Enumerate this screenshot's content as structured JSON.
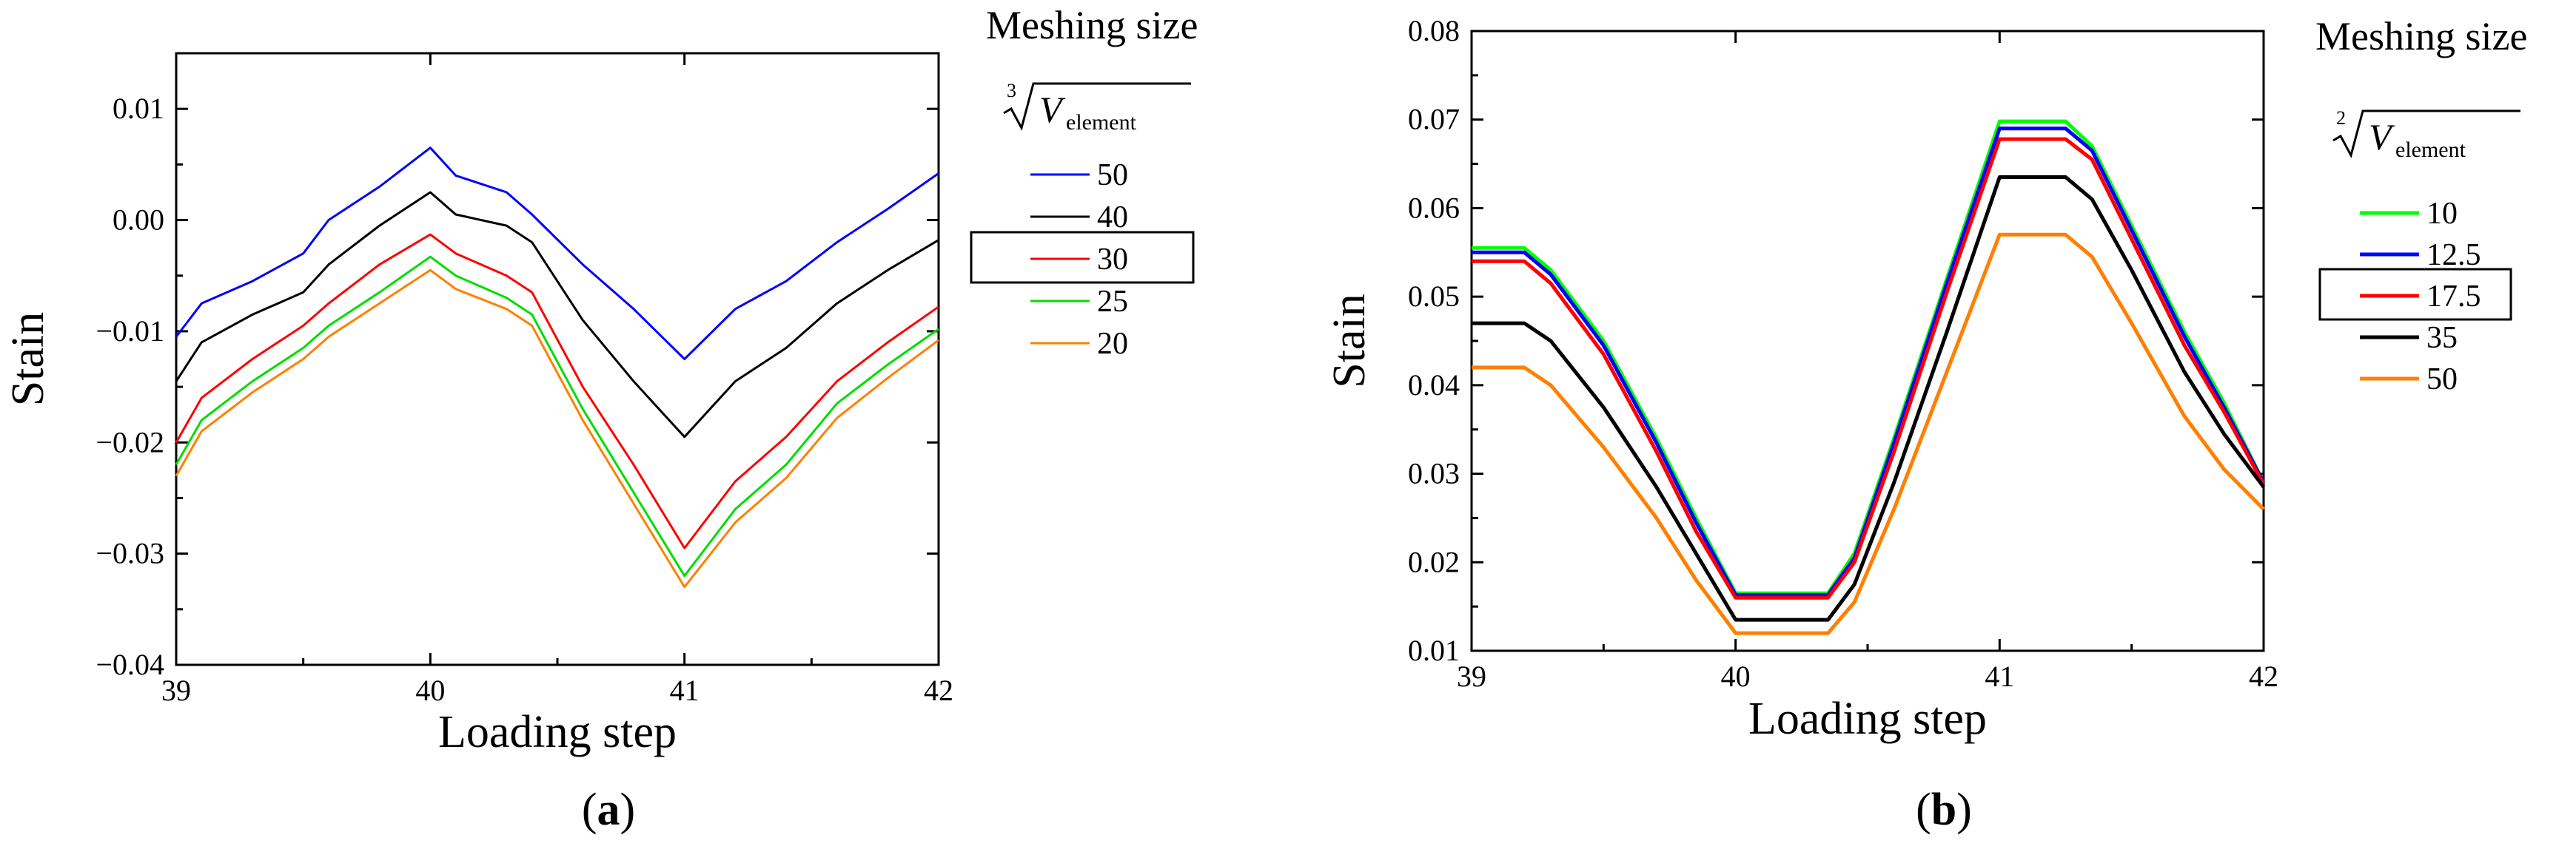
{
  "chart_data": [
    {
      "type": "line",
      "panel_label": "a",
      "xlabel": "Loading step",
      "ylabel": "Stain",
      "xlim": [
        39,
        42
      ],
      "ylim": [
        -0.04,
        0.015
      ],
      "xticks": [
        "39",
        "40",
        "41",
        "42"
      ],
      "xtick_values": [
        39,
        40,
        41,
        42
      ],
      "yticks": [
        "-0.04",
        "-0.03",
        "-0.02",
        "-0.01",
        "0.00",
        "0.01"
      ],
      "ytick_values": [
        -0.04,
        -0.03,
        -0.02,
        -0.01,
        0.0,
        0.01
      ],
      "grid": false,
      "legend_placement": "right, outside plot",
      "legend": {
        "title": "Meshing size",
        "root_index": "3",
        "root_variable": "V",
        "root_subscript": "element",
        "highlighted_entry": "30"
      },
      "x": [
        39,
        39.1,
        39.3,
        39.5,
        39.6,
        39.8,
        40,
        40.1,
        40.3,
        40.4,
        40.6,
        40.8,
        41,
        41.2,
        41.4,
        41.6,
        41.8,
        42
      ],
      "series": [
        {
          "name": "50",
          "color": "#0000ff",
          "values": [
            -0.0105,
            -0.0075,
            -0.0055,
            -0.003,
            0.0,
            0.003,
            0.0065,
            0.004,
            0.0025,
            0.0005,
            -0.004,
            -0.008,
            -0.0125,
            -0.008,
            -0.0055,
            -0.002,
            0.001,
            0.0042
          ]
        },
        {
          "name": "40",
          "color": "#000000",
          "values": [
            -0.0145,
            -0.011,
            -0.0085,
            -0.0065,
            -0.004,
            -0.0005,
            0.0025,
            0.0005,
            -0.0005,
            -0.002,
            -0.009,
            -0.0145,
            -0.0195,
            -0.0145,
            -0.0115,
            -0.0075,
            -0.0045,
            -0.0018
          ]
        },
        {
          "name": "30",
          "color": "#ff0000",
          "values": [
            -0.02,
            -0.016,
            -0.0125,
            -0.0095,
            -0.0075,
            -0.004,
            -0.0013,
            -0.003,
            -0.005,
            -0.0065,
            -0.015,
            -0.022,
            -0.0295,
            -0.0235,
            -0.0195,
            -0.0145,
            -0.011,
            -0.0078
          ]
        },
        {
          "name": "25",
          "color": "#00dd00",
          "values": [
            -0.022,
            -0.018,
            -0.0145,
            -0.0115,
            -0.0095,
            -0.0065,
            -0.0033,
            -0.005,
            -0.007,
            -0.0085,
            -0.017,
            -0.0245,
            -0.032,
            -0.026,
            -0.022,
            -0.0165,
            -0.013,
            -0.0098
          ]
        },
        {
          "name": "20",
          "color": "#ff8000",
          "values": [
            -0.023,
            -0.019,
            -0.0155,
            -0.0125,
            -0.0105,
            -0.0075,
            -0.0045,
            -0.0062,
            -0.008,
            -0.0095,
            -0.018,
            -0.0255,
            -0.033,
            -0.0272,
            -0.0232,
            -0.0178,
            -0.0142,
            -0.0108
          ]
        }
      ]
    },
    {
      "type": "line",
      "panel_label": "b",
      "xlabel": "Loading step",
      "ylabel": "Stain",
      "xlim": [
        39,
        42
      ],
      "ylim": [
        0.01,
        0.08
      ],
      "xticks": [
        "39",
        "40",
        "41",
        "42"
      ],
      "xtick_values": [
        39,
        40,
        41,
        42
      ],
      "yticks": [
        "0.01",
        "0.02",
        "0.03",
        "0.04",
        "0.05",
        "0.06",
        "0.07",
        "0.08"
      ],
      "ytick_values": [
        0.01,
        0.02,
        0.03,
        0.04,
        0.05,
        0.06,
        0.07,
        0.08
      ],
      "grid": false,
      "legend_placement": "right, outside plot",
      "legend": {
        "title": "Meshing size",
        "root_index": "2",
        "root_variable": "V",
        "root_subscript": "element",
        "highlighted_entry": "17.5"
      },
      "x": [
        39,
        39.1,
        39.2,
        39.3,
        39.5,
        39.7,
        39.85,
        40,
        40.2,
        40.35,
        40.45,
        40.6,
        40.8,
        41,
        41.15,
        41.25,
        41.35,
        41.5,
        41.7,
        41.85,
        42
      ],
      "series": [
        {
          "name": "10",
          "color": "#00ff00",
          "values": [
            0.0555,
            0.0555,
            0.0555,
            0.053,
            0.045,
            0.034,
            0.025,
            0.0165,
            0.0165,
            0.0165,
            0.021,
            0.034,
            0.052,
            0.0698,
            0.0698,
            0.0698,
            0.067,
            0.058,
            0.046,
            0.038,
            0.029
          ]
        },
        {
          "name": "12.5",
          "color": "#0000ff",
          "values": [
            0.055,
            0.055,
            0.055,
            0.0525,
            0.0445,
            0.0335,
            0.0245,
            0.0163,
            0.0163,
            0.0163,
            0.0205,
            0.0335,
            0.0515,
            0.069,
            0.069,
            0.069,
            0.0665,
            0.0575,
            0.0455,
            0.0375,
            0.029
          ]
        },
        {
          "name": "17.5",
          "color": "#ff0000",
          "values": [
            0.054,
            0.054,
            0.054,
            0.0515,
            0.0435,
            0.0325,
            0.0235,
            0.016,
            0.016,
            0.016,
            0.02,
            0.0325,
            0.0505,
            0.0678,
            0.0678,
            0.0678,
            0.0655,
            0.0565,
            0.0445,
            0.037,
            0.0288
          ]
        },
        {
          "name": "35",
          "color": "#000000",
          "values": [
            0.047,
            0.047,
            0.047,
            0.045,
            0.0375,
            0.0285,
            0.021,
            0.0135,
            0.0135,
            0.0135,
            0.0175,
            0.029,
            0.046,
            0.0635,
            0.0635,
            0.0635,
            0.061,
            0.053,
            0.0415,
            0.0345,
            0.0285
          ]
        },
        {
          "name": "50",
          "color": "#ff8000",
          "values": [
            0.042,
            0.042,
            0.042,
            0.04,
            0.033,
            0.025,
            0.018,
            0.012,
            0.012,
            0.012,
            0.0155,
            0.026,
            0.0415,
            0.057,
            0.057,
            0.057,
            0.0545,
            0.047,
            0.0365,
            0.0305,
            0.026
          ]
        }
      ]
    }
  ]
}
